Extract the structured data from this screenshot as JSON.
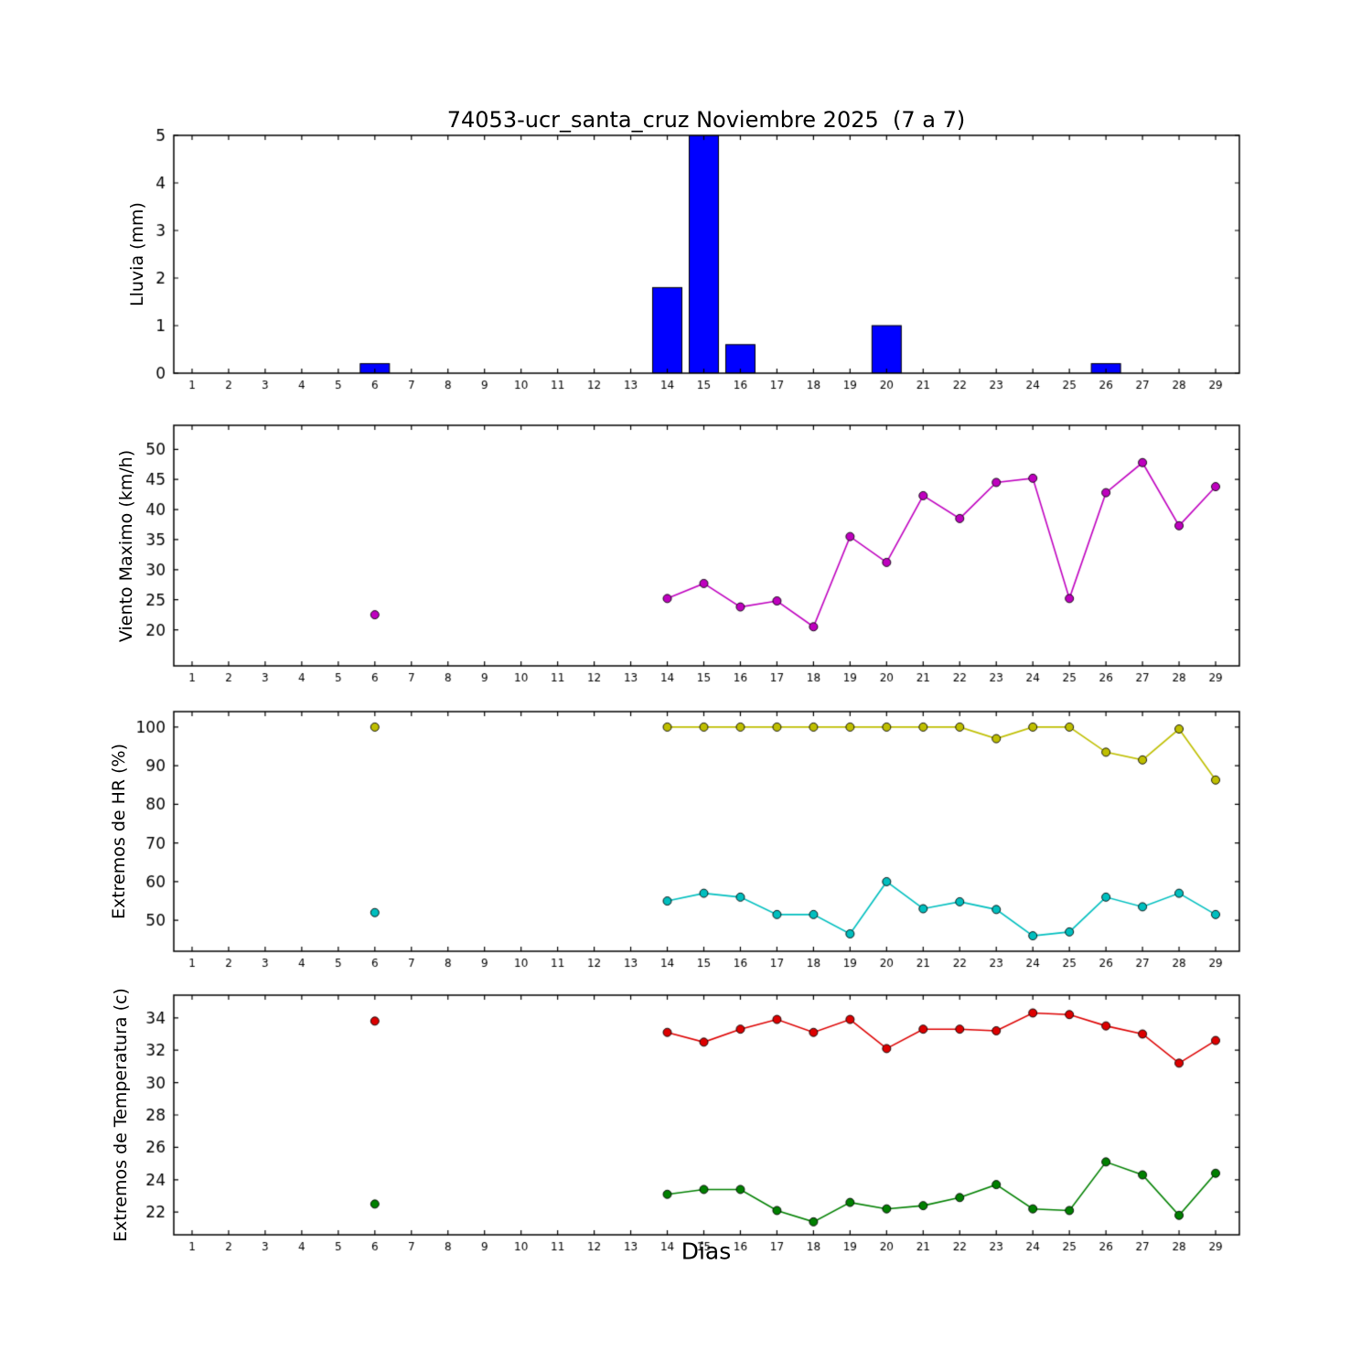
{
  "chart_data": [
    {
      "type": "bar",
      "title": "74053-ucr_santa_cruz Noviembre 2025  (7 a 7)",
      "ylabel": "Lluvia (mm)",
      "xlim": [
        0.5,
        29.65
      ],
      "ylim": [
        0,
        5
      ],
      "xticks": [
        1,
        2,
        3,
        4,
        5,
        6,
        7,
        8,
        9,
        10,
        11,
        12,
        13,
        14,
        15,
        16,
        17,
        18,
        19,
        20,
        21,
        22,
        23,
        24,
        25,
        26,
        27,
        28,
        29
      ],
      "yticks": [
        0,
        1,
        2,
        3,
        4,
        5
      ],
      "bar_color": "#0000ff",
      "bar_edge_color": "#000000",
      "categories": [
        1,
        2,
        3,
        4,
        5,
        6,
        7,
        8,
        9,
        10,
        11,
        12,
        13,
        14,
        15,
        16,
        17,
        18,
        19,
        20,
        21,
        22,
        23,
        24,
        25,
        26,
        27,
        28,
        29
      ],
      "values": [
        0,
        0,
        0,
        0,
        0,
        0.2,
        0,
        0,
        0,
        0,
        0,
        0,
        0,
        1.8,
        5.0,
        0.6,
        0,
        0,
        0,
        1.0,
        0,
        0,
        0,
        0,
        0,
        0.2,
        0,
        0,
        0
      ]
    },
    {
      "type": "line",
      "ylabel": "Viento Maximo (km/h)",
      "xlim": [
        0.5,
        29.65
      ],
      "ylim": [
        14,
        54
      ],
      "xticks": [
        1,
        2,
        3,
        4,
        5,
        6,
        7,
        8,
        9,
        10,
        11,
        12,
        13,
        14,
        15,
        16,
        17,
        18,
        19,
        20,
        21,
        22,
        23,
        24,
        25,
        26,
        27,
        28,
        29
      ],
      "yticks": [
        20,
        25,
        30,
        35,
        40,
        45,
        50
      ],
      "series": [
        {
          "name": "viento_maximo",
          "color": "#bf00bf",
          "x": [
            6,
            14,
            15,
            16,
            17,
            18,
            19,
            20,
            21,
            22,
            23,
            24,
            25,
            26,
            27,
            28,
            29
          ],
          "values": [
            22.5,
            25.2,
            27.7,
            23.8,
            24.8,
            20.5,
            35.5,
            31.2,
            42.3,
            38.5,
            44.5,
            45.2,
            25.2,
            42.8,
            47.8,
            37.3,
            43.8
          ]
        }
      ]
    },
    {
      "type": "line",
      "ylabel": "Extremos de HR (%)",
      "xlim": [
        0.5,
        29.65
      ],
      "ylim": [
        42,
        104
      ],
      "xticks": [
        1,
        2,
        3,
        4,
        5,
        6,
        7,
        8,
        9,
        10,
        11,
        12,
        13,
        14,
        15,
        16,
        17,
        18,
        19,
        20,
        21,
        22,
        23,
        24,
        25,
        26,
        27,
        28,
        29
      ],
      "yticks": [
        50,
        60,
        70,
        80,
        90,
        100
      ],
      "series": [
        {
          "name": "hr_maxima",
          "color": "#bfbf00",
          "x": [
            6,
            14,
            15,
            16,
            17,
            18,
            19,
            20,
            21,
            22,
            23,
            24,
            25,
            26,
            27,
            28,
            29
          ],
          "values": [
            100,
            100,
            100,
            100,
            100,
            100,
            100,
            100,
            100,
            100,
            97,
            100,
            100,
            93.5,
            91.5,
            99.5,
            86.3
          ]
        },
        {
          "name": "hr_minima",
          "color": "#00bfbf",
          "x": [
            6,
            14,
            15,
            16,
            17,
            18,
            19,
            20,
            21,
            22,
            23,
            24,
            25,
            26,
            27,
            28,
            29
          ],
          "values": [
            52,
            55,
            57,
            56,
            51.5,
            51.5,
            46.5,
            60,
            53,
            54.8,
            52.8,
            46,
            47,
            56,
            53.5,
            57,
            51.5
          ]
        }
      ]
    },
    {
      "type": "line",
      "ylabel": "Extremos de Temperatura (c)",
      "xlabel": "Dias",
      "xlim": [
        0.5,
        29.65
      ],
      "ylim": [
        20.6,
        35.4
      ],
      "xticks": [
        1,
        2,
        3,
        4,
        5,
        6,
        7,
        8,
        9,
        10,
        11,
        12,
        13,
        14,
        15,
        16,
        17,
        18,
        19,
        20,
        21,
        22,
        23,
        24,
        25,
        26,
        27,
        28,
        29
      ],
      "yticks": [
        22,
        24,
        26,
        28,
        30,
        32,
        34
      ],
      "series": [
        {
          "name": "temperatura_maxima",
          "color": "#dd0000",
          "x": [
            6,
            14,
            15,
            16,
            17,
            18,
            19,
            20,
            21,
            22,
            23,
            24,
            25,
            26,
            27,
            28,
            29
          ],
          "values": [
            33.8,
            33.1,
            32.5,
            33.3,
            33.9,
            33.1,
            33.9,
            32.1,
            33.3,
            33.3,
            33.2,
            34.3,
            34.2,
            33.5,
            33.0,
            31.2,
            32.6
          ]
        },
        {
          "name": "temperatura_minima",
          "color": "#008000",
          "x": [
            6,
            14,
            15,
            16,
            17,
            18,
            19,
            20,
            21,
            22,
            23,
            24,
            25,
            26,
            27,
            28,
            29
          ],
          "values": [
            22.5,
            23.1,
            23.4,
            23.4,
            22.1,
            21.4,
            22.6,
            22.2,
            22.4,
            22.9,
            23.7,
            22.2,
            22.1,
            25.1,
            24.3,
            21.8,
            24.4
          ]
        }
      ]
    }
  ]
}
